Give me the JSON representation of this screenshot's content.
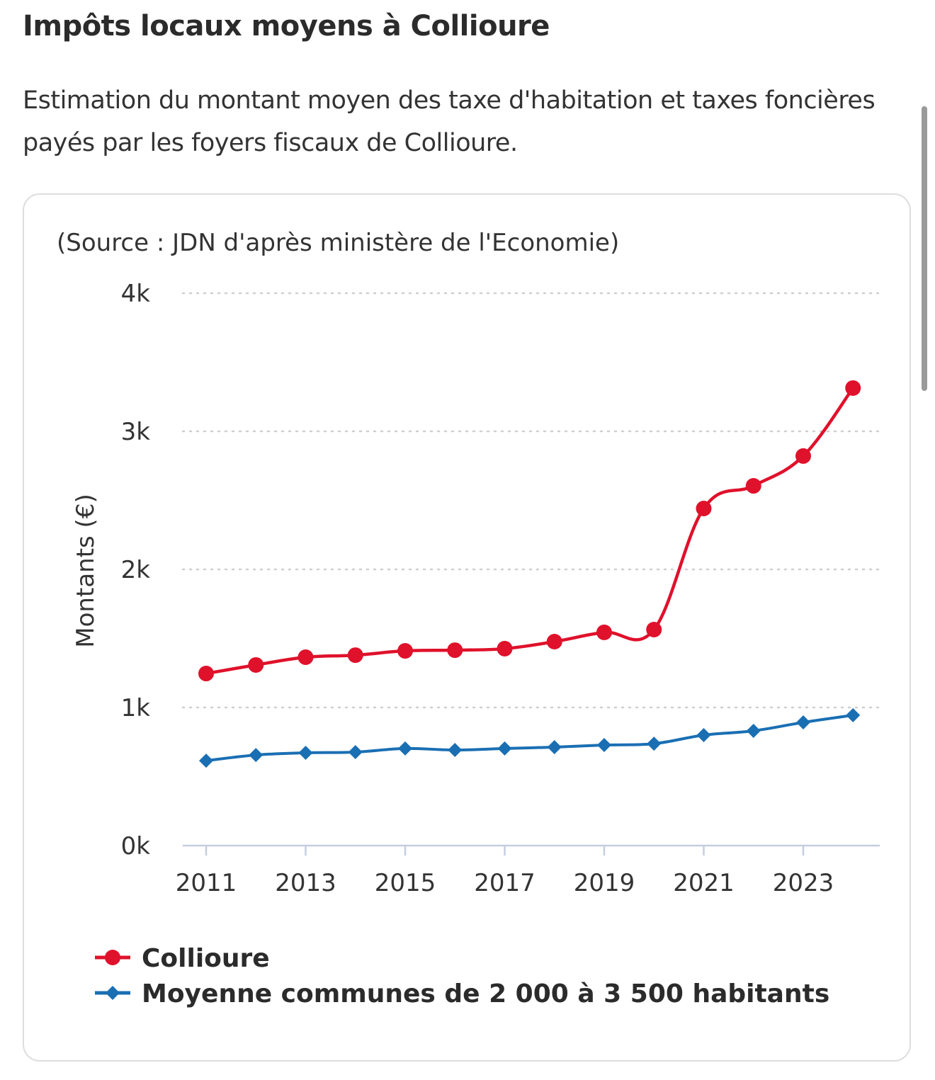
{
  "header": {
    "title": "Impôts locaux moyens à Collioure",
    "subtitle": "Estimation du montant moyen des taxe d'habitation et taxes foncières payés par les foyers fiscaux de Collioure."
  },
  "chart_data": {
    "type": "line",
    "source": "(Source : JDN d'après ministère de l'Economie)",
    "ylabel": "Montants (€)",
    "xlabel": "",
    "ylim": [
      0,
      4000
    ],
    "yticks": [
      0,
      1000,
      2000,
      3000,
      4000
    ],
    "ytick_labels": [
      "0k",
      "1k",
      "2k",
      "3k",
      "4k"
    ],
    "xticks": [
      2011,
      2013,
      2015,
      2017,
      2019,
      2021,
      2023
    ],
    "xtick_labels": [
      "2011",
      "2013",
      "2015",
      "2017",
      "2019",
      "2021",
      "2023"
    ],
    "x": [
      2011,
      2012,
      2013,
      2014,
      2015,
      2016,
      2017,
      2018,
      2019,
      2020,
      2021,
      2022,
      2023,
      2024
    ],
    "grid": "horizontal dotted",
    "legend_position": "bottom-left",
    "series": [
      {
        "name": "Collioure",
        "color": "#e0112b",
        "marker": "circle",
        "values": [
          1246,
          1308,
          1364,
          1379,
          1410,
          1415,
          1426,
          1477,
          1544,
          1564,
          2441,
          2605,
          2821,
          3313
        ]
      },
      {
        "name": "Moyenne communes de 2 000 à 3 500 habitants",
        "color": "#1a6fb3",
        "marker": "diamond",
        "values": [
          615,
          656,
          672,
          677,
          703,
          692,
          703,
          713,
          728,
          738,
          800,
          831,
          892,
          944
        ]
      }
    ]
  }
}
